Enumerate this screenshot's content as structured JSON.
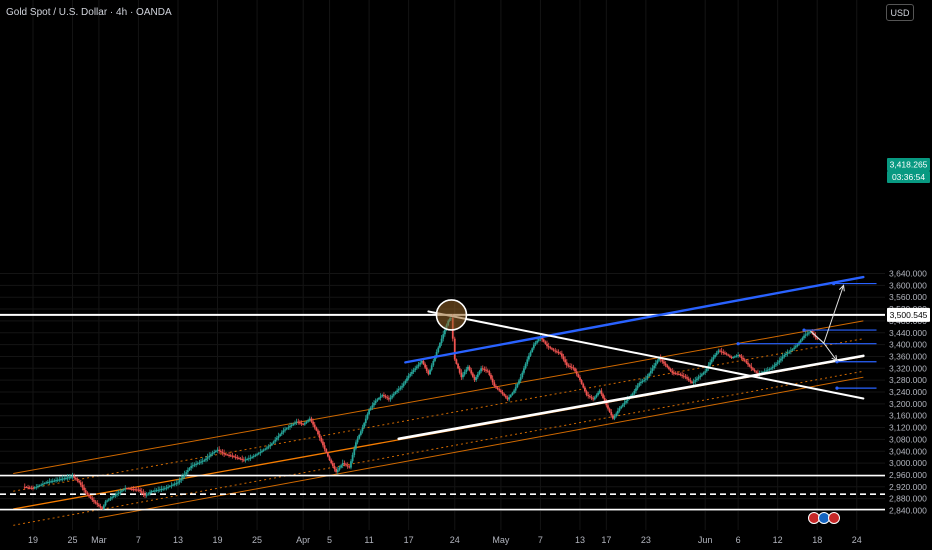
{
  "header": {
    "title": "Gold Spot / U.S. Dollar · 4h · OANDA",
    "currency_button": "USD"
  },
  "price_tags": {
    "resistance": "3,500.545",
    "current_price": "3,418.265",
    "countdown": "03:36:54"
  },
  "colors": {
    "background": "#000000",
    "up": "#26a69a",
    "down": "#ef5350",
    "channel": "#f57c00",
    "blue_line": "#2962ff",
    "price_tag": "#089981"
  },
  "chart_data": {
    "type": "candlestick",
    "title": "Gold Spot / U.S. Dollar · 4h · OANDA",
    "ylim": [
      2820,
      3660
    ],
    "y_ticks": [
      2840,
      2880,
      2920,
      2960,
      3000,
      3040,
      3080,
      3120,
      3160,
      3200,
      3240,
      3280,
      3320,
      3360,
      3400,
      3440,
      3480,
      3520,
      3560,
      3600,
      3640
    ],
    "y_tick_labels": [
      "2,840.000",
      "2,880.000",
      "2,920.000",
      "2,960.000",
      "3,000.000",
      "3,040.000",
      "3,080.000",
      "3,120.000",
      "3,160.000",
      "3,200.000",
      "3,240.000",
      "3,280.000",
      "3,320.000",
      "3,360.000",
      "3,400.000",
      "3,440.000",
      "3,480.000",
      "3,520.000",
      "3,560.000",
      "3,600.000",
      "3,640.000"
    ],
    "x_ticks": [
      {
        "label": "19",
        "day": 0
      },
      {
        "label": "25",
        "day": 6
      },
      {
        "label": "Mar",
        "day": 10
      },
      {
        "label": "7",
        "day": 16
      },
      {
        "label": "13",
        "day": 22
      },
      {
        "label": "19",
        "day": 28
      },
      {
        "label": "25",
        "day": 34
      },
      {
        "label": "Apr",
        "day": 41
      },
      {
        "label": "5",
        "day": 45
      },
      {
        "label": "11",
        "day": 51
      },
      {
        "label": "17",
        "day": 57
      },
      {
        "label": "24",
        "day": 64
      },
      {
        "label": "May",
        "day": 71
      },
      {
        "label": "7",
        "day": 77
      },
      {
        "label": "13",
        "day": 83
      },
      {
        "label": "17",
        "day": 87
      },
      {
        "label": "23",
        "day": 93
      },
      {
        "label": "Jun",
        "day": 102
      },
      {
        "label": "6",
        "day": 107
      },
      {
        "label": "12",
        "day": 113
      },
      {
        "label": "18",
        "day": 119
      },
      {
        "label": "24",
        "day": 125
      }
    ],
    "price_path": [
      [
        -1.5,
        2920
      ],
      [
        0,
        2915
      ],
      [
        2,
        2935
      ],
      [
        4,
        2945
      ],
      [
        6,
        2955
      ],
      [
        7,
        2935
      ],
      [
        8,
        2900
      ],
      [
        9,
        2875
      ],
      [
        10,
        2855
      ],
      [
        10.5,
        2845
      ],
      [
        11,
        2870
      ],
      [
        12,
        2885
      ],
      [
        14,
        2915
      ],
      [
        16,
        2910
      ],
      [
        17,
        2890
      ],
      [
        18,
        2905
      ],
      [
        20,
        2915
      ],
      [
        22,
        2935
      ],
      [
        24,
        2990
      ],
      [
        26,
        3010
      ],
      [
        27,
        3030
      ],
      [
        28,
        3045
      ],
      [
        29,
        3030
      ],
      [
        30,
        3025
      ],
      [
        32,
        3010
      ],
      [
        33,
        3018
      ],
      [
        34,
        3030
      ],
      [
        36,
        3060
      ],
      [
        38,
        3110
      ],
      [
        40,
        3140
      ],
      [
        41,
        3130
      ],
      [
        42,
        3150
      ],
      [
        43,
        3110
      ],
      [
        44,
        3060
      ],
      [
        45,
        3010
      ],
      [
        46,
        2970
      ],
      [
        47,
        3000
      ],
      [
        48,
        2985
      ],
      [
        49,
        3070
      ],
      [
        50,
        3120
      ],
      [
        51,
        3180
      ],
      [
        52,
        3210
      ],
      [
        53,
        3230
      ],
      [
        54,
        3215
      ],
      [
        55,
        3240
      ],
      [
        56,
        3260
      ],
      [
        57,
        3295
      ],
      [
        58,
        3320
      ],
      [
        59,
        3345
      ],
      [
        60,
        3300
      ],
      [
        61,
        3360
      ],
      [
        62,
        3420
      ],
      [
        63,
        3480
      ],
      [
        63.4,
        3490
      ],
      [
        64,
        3350
      ],
      [
        65,
        3290
      ],
      [
        66,
        3325
      ],
      [
        67,
        3280
      ],
      [
        68,
        3320
      ],
      [
        69,
        3310
      ],
      [
        70,
        3260
      ],
      [
        71,
        3240
      ],
      [
        72,
        3215
      ],
      [
        73,
        3245
      ],
      [
        74,
        3290
      ],
      [
        75,
        3350
      ],
      [
        76,
        3400
      ],
      [
        77,
        3425
      ],
      [
        78,
        3395
      ],
      [
        79,
        3380
      ],
      [
        80,
        3370
      ],
      [
        81,
        3330
      ],
      [
        82,
        3320
      ],
      [
        83,
        3280
      ],
      [
        84,
        3230
      ],
      [
        85,
        3215
      ],
      [
        86,
        3245
      ],
      [
        87,
        3195
      ],
      [
        88,
        3150
      ],
      [
        89,
        3185
      ],
      [
        90,
        3210
      ],
      [
        91,
        3235
      ],
      [
        92,
        3270
      ],
      [
        93,
        3285
      ],
      [
        94,
        3320
      ],
      [
        95,
        3355
      ],
      [
        96,
        3330
      ],
      [
        97,
        3305
      ],
      [
        98,
        3300
      ],
      [
        99,
        3290
      ],
      [
        100,
        3270
      ],
      [
        101,
        3290
      ],
      [
        102,
        3310
      ],
      [
        103,
        3350
      ],
      [
        104,
        3380
      ],
      [
        105,
        3370
      ],
      [
        106,
        3355
      ],
      [
        107,
        3365
      ],
      [
        108,
        3345
      ],
      [
        109,
        3320
      ],
      [
        110,
        3300
      ],
      [
        111,
        3310
      ],
      [
        112,
        3320
      ],
      [
        113,
        3340
      ],
      [
        114,
        3365
      ],
      [
        115,
        3380
      ],
      [
        116,
        3400
      ],
      [
        117,
        3430
      ],
      [
        118,
        3445
      ],
      [
        119,
        3418
      ]
    ],
    "lines": {
      "horizontal_resistance": 3500.545,
      "horizontal_support_1": 2958,
      "horizontal_support_dashed": 2895,
      "horizontal_support_2": 2843,
      "blue_trendline": [
        [
          56.5,
          3340
        ],
        [
          126,
          3628
        ]
      ],
      "descending_trendline": [
        [
          60,
          3512
        ],
        [
          126,
          3218
        ]
      ],
      "ascending_trendline": [
        [
          55.5,
          3082
        ],
        [
          126,
          3362
        ]
      ],
      "channel_upper": [
        [
          -3,
          2965
        ],
        [
          126,
          3480
        ]
      ],
      "channel_mid_upper": [
        [
          -3,
          2905
        ],
        [
          126,
          3420
        ]
      ],
      "channel_mid_lower": [
        [
          -3,
          2845
        ],
        [
          126,
          3360
        ]
      ],
      "channel_dashed": [
        [
          -3,
          2790
        ],
        [
          126,
          3310
        ]
      ],
      "channel_lower": [
        [
          10,
          2815
        ],
        [
          126,
          3290
        ]
      ],
      "target_levels": [
        {
          "from_day": 121.5,
          "to_day": 128,
          "price": 3606
        },
        {
          "from_day": 117,
          "to_day": 128,
          "price": 3449
        },
        {
          "from_day": 107,
          "to_day": 128,
          "price": 3403
        },
        {
          "from_day": 122,
          "to_day": 128,
          "price": 3342
        },
        {
          "from_day": 122,
          "to_day": 128,
          "price": 3253
        }
      ],
      "projection_arrows": [
        [
          [
            118,
            3445
          ],
          [
            120,
            3405
          ],
          [
            123,
            3600
          ]
        ],
        [
          [
            118,
            3445
          ],
          [
            120,
            3405
          ],
          [
            122,
            3345
          ]
        ]
      ],
      "highlight_circle": {
        "day": 63.5,
        "price": 3500
      }
    }
  }
}
